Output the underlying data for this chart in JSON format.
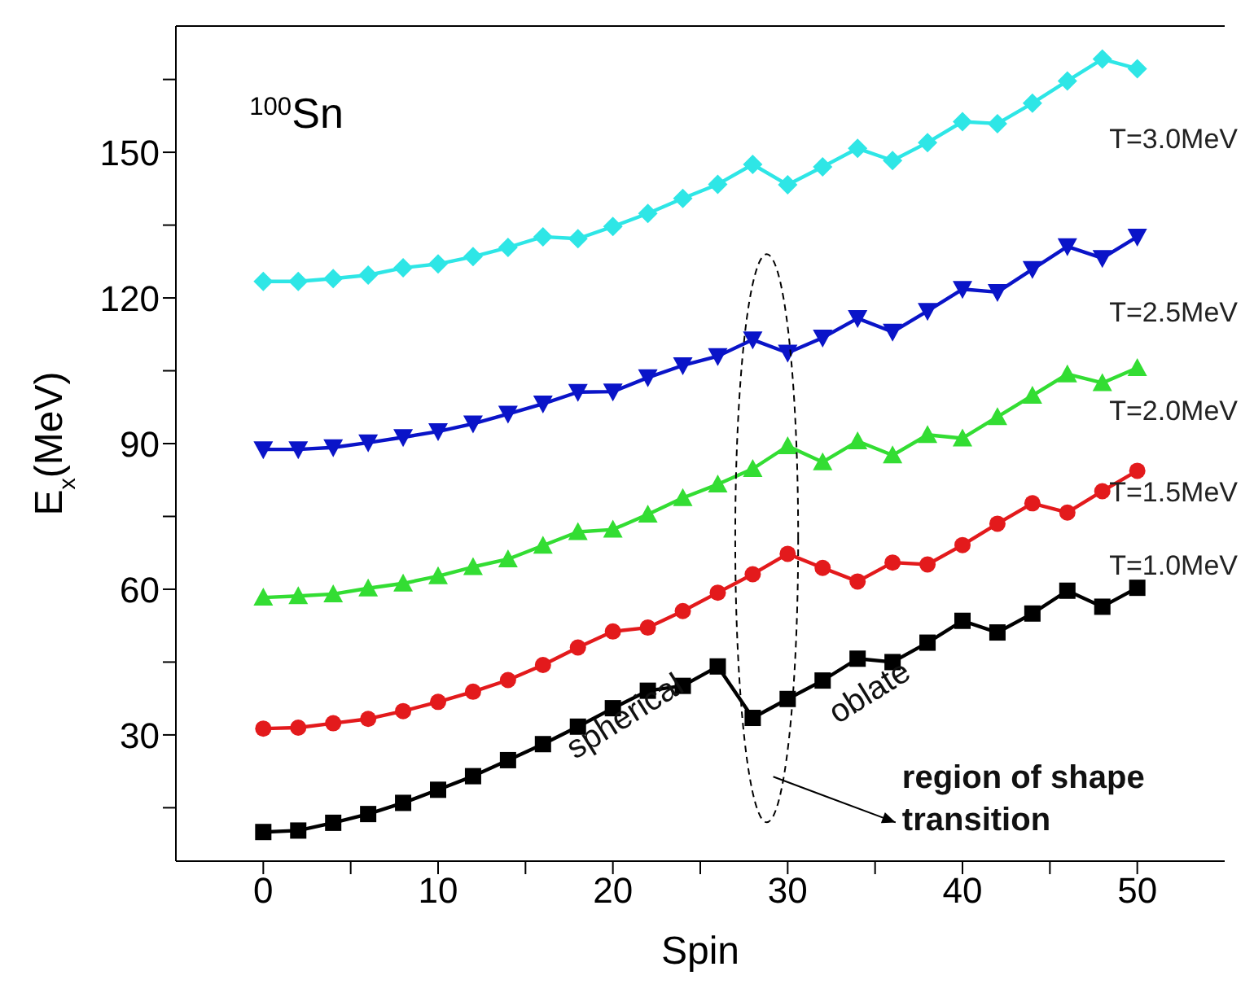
{
  "chart_data": {
    "type": "line",
    "title": "$^{100}$Sn",
    "xlabel": "Spin",
    "ylabel": "E$_{x}$(MeV)",
    "x": [
      0,
      2,
      4,
      6,
      8,
      10,
      12,
      14,
      16,
      18,
      20,
      22,
      24,
      26,
      28,
      30,
      32,
      34,
      36,
      38,
      40,
      42,
      44,
      46,
      48,
      50
    ],
    "series": [
      {
        "name": "T=1.0MeV",
        "color": "#000000",
        "marker": "square",
        "values": [
          10.0,
          10.3,
          11.9,
          13.7,
          16.0,
          18.7,
          21.5,
          24.8,
          28.1,
          31.7,
          35.5,
          39.1,
          40.1,
          44.1,
          33.5,
          37.4,
          41.2,
          45.7,
          45.0,
          49.0,
          53.5,
          51.1,
          55.0,
          59.7,
          56.4,
          60.3
        ]
      },
      {
        "name": "T=1.5MeV",
        "color": "#e31a1c",
        "marker": "circle",
        "values": [
          31.3,
          31.5,
          32.4,
          33.3,
          34.9,
          36.8,
          38.9,
          41.3,
          44.4,
          48.0,
          51.3,
          52.1,
          55.5,
          59.3,
          63.1,
          67.3,
          64.4,
          61.6,
          65.5,
          65.1,
          69.1,
          73.5,
          77.7,
          75.8,
          80.2,
          84.4
        ]
      },
      {
        "name": "T=2.0MeV",
        "color": "#33dd33",
        "marker": "triangle",
        "values": [
          58.3,
          58.6,
          59.0,
          60.2,
          61.2,
          62.7,
          64.6,
          66.2,
          69.0,
          71.8,
          72.3,
          75.4,
          78.8,
          81.6,
          84.8,
          89.5,
          86.2,
          90.5,
          87.6,
          91.8,
          91.1,
          95.5,
          99.9,
          104.3,
          102.5,
          105.6
        ]
      },
      {
        "name": "T=2.5MeV",
        "color": "#0a14c8",
        "marker": "triangle-down",
        "values": [
          88.8,
          88.8,
          89.2,
          90.2,
          91.3,
          92.5,
          94.1,
          96.1,
          98.2,
          100.6,
          100.7,
          103.6,
          106.1,
          108.0,
          111.4,
          108.7,
          111.8,
          115.8,
          113.0,
          117.3,
          121.8,
          121.2,
          125.9,
          130.6,
          128.2,
          132.6
        ]
      },
      {
        "name": "T=3.0MeV",
        "color": "#2ee6e6",
        "marker": "diamond",
        "values": [
          123.4,
          123.4,
          124.0,
          124.7,
          126.2,
          127.0,
          128.5,
          130.4,
          132.6,
          132.2,
          134.7,
          137.4,
          140.5,
          143.4,
          147.5,
          143.3,
          147.0,
          150.8,
          148.3,
          152.0,
          156.3,
          155.9,
          160.1,
          164.7,
          169.2,
          167.2
        ]
      }
    ],
    "xlim": [
      -5,
      55
    ],
    "xticks": [
      0,
      {
        "value": 5,
        "label": null
      },
      10,
      {
        "value": 15,
        "label": null
      },
      20,
      {
        "value": 25,
        "label": null
      },
      30,
      {
        "value": 35,
        "label": null
      },
      40,
      {
        "value": 45,
        "label": null
      },
      50
    ],
    "ylim": [
      4,
      176
    ],
    "yticks": [
      {
        "value": 15,
        "label": null
      },
      30,
      {
        "value": 45,
        "label": null
      },
      60,
      {
        "value": 75,
        "label": null
      },
      90,
      {
        "value": 105,
        "label": null
      },
      120,
      {
        "value": 135,
        "label": null
      },
      150,
      {
        "value": 165,
        "label": null
      }
    ],
    "line_style": "solid",
    "annotations": [
      "spherical",
      "oblate",
      "region of shape transition"
    ]
  }
}
